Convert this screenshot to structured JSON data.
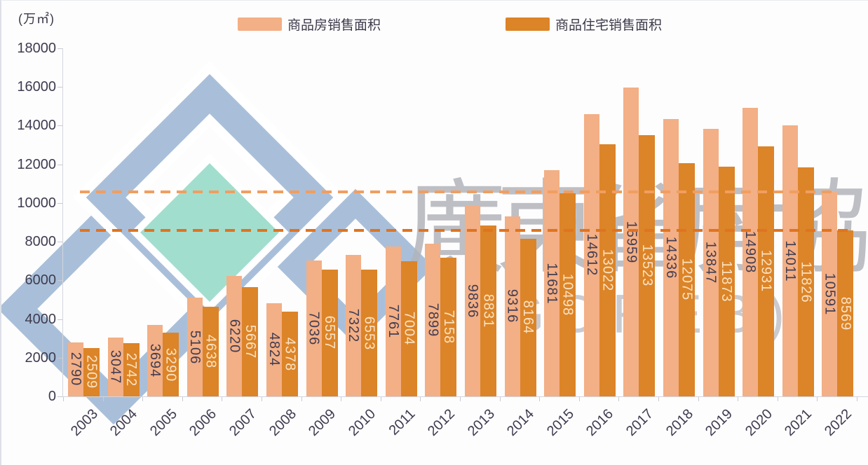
{
  "chart": {
    "unit": "(万㎡)",
    "type": "bar",
    "categories": [
      "2003",
      "2004",
      "2005",
      "2006",
      "2007",
      "2008",
      "2009",
      "2010",
      "2011",
      "2012",
      "2013",
      "2014",
      "2015",
      "2016",
      "2017",
      "2018",
      "2019",
      "2020",
      "2021",
      "2022"
    ],
    "series": [
      {
        "name": "商品房销售面积",
        "color": "#F3AF85",
        "label_color": "#423D52",
        "values": [
          2790,
          3047,
          3694,
          5106,
          6220,
          4824,
          7036,
          7322,
          7761,
          7899,
          9836,
          9316,
          11681,
          14612,
          15959,
          14336,
          13847,
          14908,
          14011,
          10591
        ]
      },
      {
        "name": "商品住宅销售面积",
        "color": "#DC8428",
        "label_color": "#FAE2C1",
        "values": [
          2509,
          2742,
          3290,
          4638,
          5667,
          4378,
          6557,
          6553,
          7004,
          7158,
          8831,
          8164,
          10498,
          13022,
          13523,
          12075,
          11873,
          12931,
          11826,
          8569
        ]
      }
    ],
    "ylim": [
      0,
      18000
    ],
    "ytick_step": 2000,
    "grid": false,
    "legend_position": "top",
    "reference_lines": [
      {
        "value": 10591,
        "color": "#F19E60",
        "style": "dashed"
      },
      {
        "value": 8569,
        "color": "#E0741F",
        "style": "dashed"
      }
    ]
  },
  "watermark": {
    "text_cn": "廣東省房協",
    "text_en": "(GDREB)",
    "logo_blue": "#A9BFD9",
    "logo_teal": "#A2DECD",
    "text_color": "#B2B5BB"
  }
}
